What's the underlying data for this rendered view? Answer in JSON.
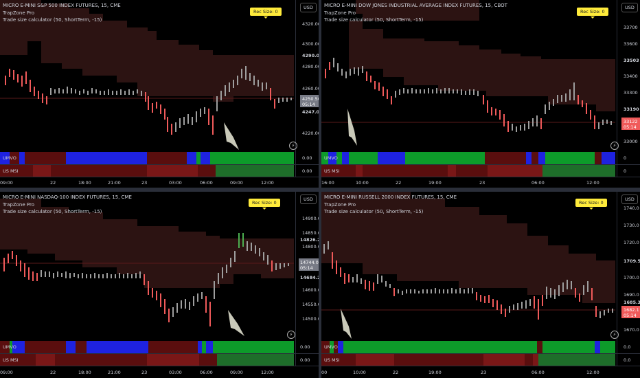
{
  "colors": {
    "bull": "#9e9e9e",
    "bear": "#f05a5a",
    "green": "#4caf50",
    "blue": "#1e22e0",
    "dgreen": "#0d9b2a",
    "dred": "#5a0e0e",
    "mred": "#7a1717",
    "cloud": "#2c1312"
  },
  "panes": [
    {
      "title": "MICRO E-MINI S&P 500 INDEX FUTURES, 15, CME",
      "ind1": "TrapZone Pro",
      "ind2": "Trade size calculator (50, ShortTerm, -15)",
      "rec": "Rec Size: 0",
      "usd": "USD",
      "ticks": [
        "4320.00",
        "4300.00",
        "4290.00",
        "4280.00",
        "4260.00",
        "4250.50",
        "05:14",
        "4247.00",
        "4240.00",
        "4220.00"
      ],
      "times": [
        "09:00",
        "22",
        "18:00",
        "21:00",
        "23",
        "03:00",
        "06:00",
        "09:00",
        "12:00"
      ],
      "sub1": "UMVO",
      "sub2": "US MSI",
      "v1": "0.00",
      "v2": "0.00"
    },
    {
      "title": "MICRO E-MINI DOW JONES INDUSTRIAL AVERAGE INDEX FUTURES, 15, CBOT",
      "ind1": "TrapZone Pro",
      "ind2": "Trade size calculator (50, ShortTerm, -15)",
      "rec": "Rec Size: 0",
      "usd": "USD",
      "ticks": [
        "33700",
        "33600",
        "33503",
        "33400",
        "33300",
        "33200",
        "33190",
        "33122",
        "05:14",
        "33000"
      ],
      "times": [
        "16:00",
        "10:00",
        "22",
        "19:00",
        "23",
        "06:00",
        "12:00"
      ],
      "sub1": "UMVO",
      "sub2": "US MSI",
      "v1": "0",
      "v2": "0"
    },
    {
      "title": "MICRO E-MINI NASDAQ-100 INDEX FUTURES, 15, CME",
      "ind1": "TrapZone Pro",
      "ind2": "Trade size calculator (50, ShortTerm, -15)",
      "rec": "Rec Size: 0",
      "usd": "USD",
      "ticks": [
        "14900.00",
        "14850.00",
        "14826.25",
        "14800.00",
        "14744.00",
        "05:14",
        "14684.25",
        "14650.00",
        "14600.00",
        "14550.00",
        "14500.00"
      ],
      "times": [
        "09:00",
        "22",
        "18:00",
        "21:00",
        "23",
        "03:00",
        "06:00",
        "09:00",
        "12:00"
      ],
      "sub1": "UMVO",
      "sub2": "US MSI",
      "v1": "0.00",
      "v2": "0.00"
    },
    {
      "title": "MICRO E-MINI RUSSELL 2000 INDEX FUTURES, 15, CME",
      "ind1": "TrapZone Pro",
      "ind2": "Trade size calculator (50, ShortTerm, -15)",
      "rec": "Rec Size: 0",
      "usd": "USD",
      "ticks": [
        "1740.0",
        "1730.0",
        "1720.0",
        "1709.5",
        "1700.0",
        "1690.0",
        "1685.3",
        "1682.1",
        "05:14",
        "1670.0"
      ],
      "times": [
        "00",
        "10:00",
        "22",
        "19:00",
        "23",
        "06:00",
        "12:00"
      ],
      "sub1": "UMVO",
      "sub2": "US MSI",
      "v1": "0.0",
      "v2": "0.0"
    }
  ]
}
